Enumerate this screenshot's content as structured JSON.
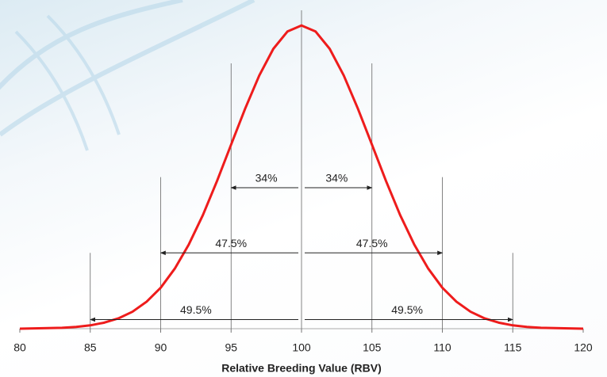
{
  "chart_data": {
    "type": "line",
    "x_label": "Relative Breeding Value (RBV)",
    "x": [
      80,
      81,
      82,
      83,
      84,
      85,
      86,
      87,
      88,
      89,
      90,
      91,
      92,
      93,
      94,
      95,
      96,
      97,
      98,
      99,
      100,
      101,
      102,
      103,
      104,
      105,
      106,
      107,
      108,
      109,
      110,
      111,
      112,
      113,
      114,
      115,
      116,
      117,
      118,
      119,
      120
    ],
    "values": [
      0,
      0.001,
      0.002,
      0.003,
      0.006,
      0.011,
      0.02,
      0.034,
      0.056,
      0.089,
      0.135,
      0.198,
      0.278,
      0.375,
      0.487,
      0.607,
      0.726,
      0.835,
      0.923,
      0.98,
      1,
      0.98,
      0.923,
      0.835,
      0.726,
      0.607,
      0.487,
      0.375,
      0.278,
      0.198,
      0.135,
      0.089,
      0.056,
      0.034,
      0.02,
      0.011,
      0.006,
      0.003,
      0.002,
      0.001,
      0
    ],
    "color": "#ee1c1c",
    "xlim": [
      80,
      120
    ],
    "xticks": [
      80,
      85,
      90,
      95,
      100,
      105,
      110,
      115,
      120
    ],
    "ylim": [
      0,
      1.05
    ],
    "vlines": [
      {
        "x": 85,
        "height": 0.25
      },
      {
        "x": 90,
        "height": 0.5
      },
      {
        "x": 95,
        "height": 0.875
      },
      {
        "x": 100,
        "height": 1.05
      },
      {
        "x": 105,
        "height": 0.875
      },
      {
        "x": 110,
        "height": 0.5
      },
      {
        "x": 115,
        "height": 0.25
      }
    ],
    "annotations": [
      {
        "text": "34%",
        "from": 100,
        "to": 95,
        "y": 0.465
      },
      {
        "text": "34%",
        "from": 100,
        "to": 105,
        "y": 0.465
      },
      {
        "text": "47.5%",
        "from": 100,
        "to": 90,
        "y": 0.25
      },
      {
        "text": "47.5%",
        "from": 100,
        "to": 110,
        "y": 0.25
      },
      {
        "text": "49.5%",
        "from": 100,
        "to": 85,
        "y": 0.03
      },
      {
        "text": "49.5%",
        "from": 100,
        "to": 115,
        "y": 0.03
      }
    ]
  }
}
